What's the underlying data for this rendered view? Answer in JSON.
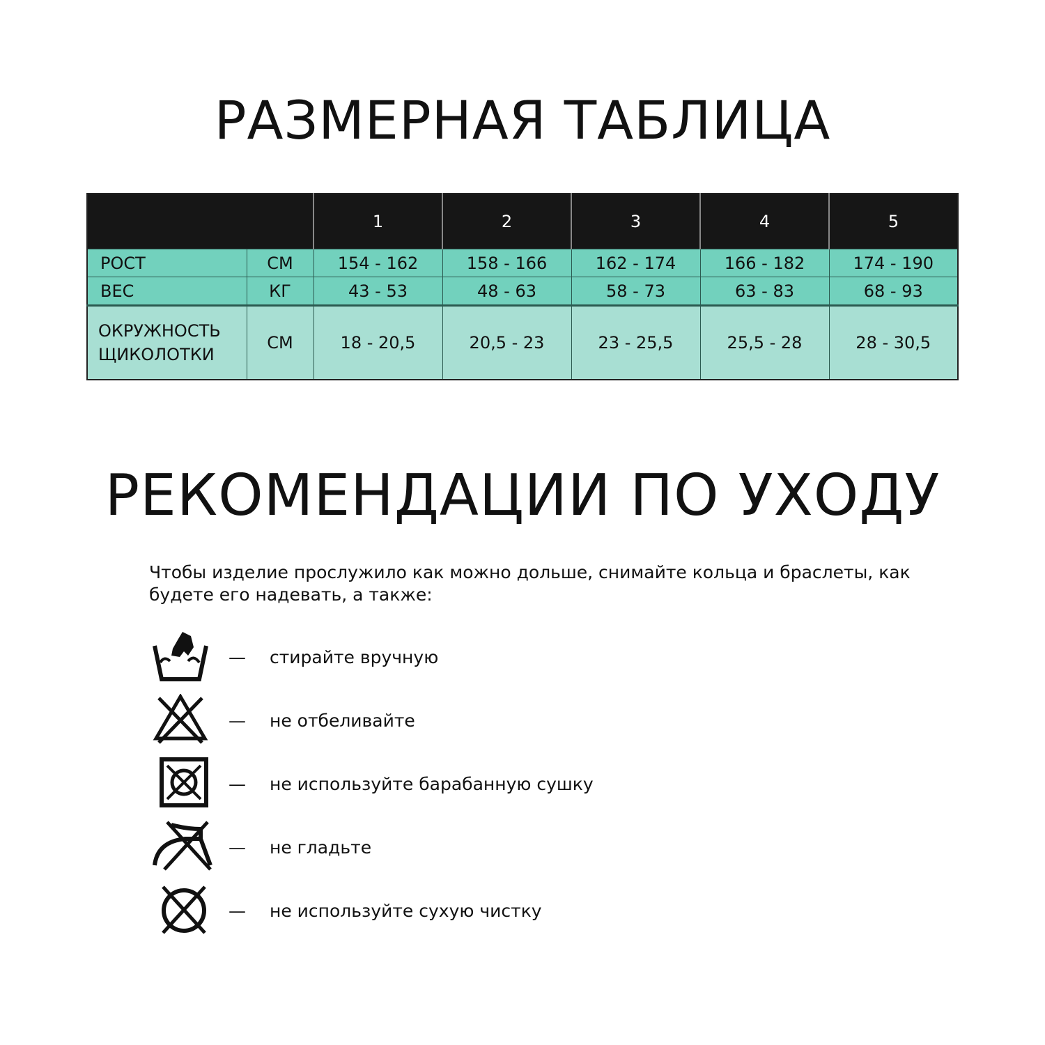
{
  "size_table": {
    "title": "РАЗМЕРНАЯ ТАБЛИЦА",
    "sizes": [
      "1",
      "2",
      "3",
      "4",
      "5"
    ],
    "rows": [
      {
        "label": "РОСТ",
        "unit": "СМ",
        "values": [
          "154 - 162",
          "158 - 166",
          "162 - 174",
          "166 - 182",
          "174 - 190"
        ]
      },
      {
        "label": "ВЕС",
        "unit": "КГ",
        "values": [
          "43 - 53",
          "48 - 63",
          "58 - 73",
          "63 - 83",
          "68 - 93"
        ]
      },
      {
        "label": "ОКРУЖНОСТЬ ЩИКОЛОТКИ",
        "unit": "СМ",
        "values": [
          "18 - 20,5",
          "20,5 - 23",
          "23 - 25,5",
          "25,5 - 28",
          "28 - 30,5"
        ]
      }
    ],
    "colors": {
      "header": "#161616",
      "row_primary": "#72d1bd",
      "row_secondary": "#a8dfd3"
    }
  },
  "care": {
    "title": "РЕКОМЕНДАЦИИ ПО УХОДУ",
    "intro": "Чтобы изделие прослужило как можно дольше, снимайте кольца и браслеты, как будете его надевать, а также:",
    "dash": "—",
    "items": [
      {
        "icon": "hand-wash-icon",
        "text": "стирайте вручную"
      },
      {
        "icon": "no-bleach-icon",
        "text": "не отбеливайте"
      },
      {
        "icon": "no-tumble-dry-icon",
        "text": "не используйте барабанную сушку"
      },
      {
        "icon": "no-iron-icon",
        "text": "не гладьте"
      },
      {
        "icon": "no-dry-clean-icon",
        "text": "не используйте сухую чистку"
      }
    ]
  }
}
